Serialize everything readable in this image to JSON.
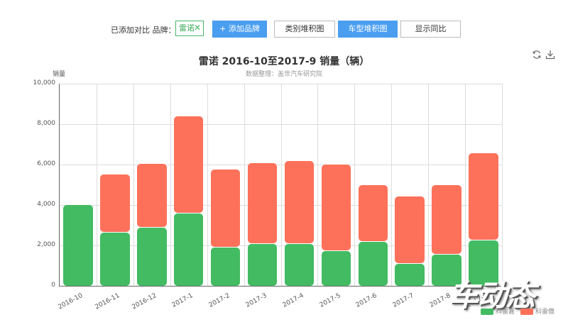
{
  "toolbar": {
    "label": "已添加对比 品牌：",
    "tag": {
      "label": "雷诺",
      "close": "✕"
    },
    "buttons": [
      {
        "label": "+ 添加品牌",
        "style": "blue"
      },
      {
        "label": "类别堆积图",
        "style": "white"
      },
      {
        "label": "车型堆积图",
        "style": "blue"
      },
      {
        "label": "显示同比",
        "style": "white"
      }
    ]
  },
  "tools": {
    "refresh": "refresh-icon",
    "download": "download-icon"
  },
  "colors": {
    "green": "#43bb62",
    "red": "#fd715a",
    "accent": "#4a9ef0"
  },
  "watermark": "车动态",
  "chart_data": {
    "type": "bar",
    "stacked": true,
    "title": "雷诺 2016-10至2017-9 销量（辆）",
    "subtitle": "数据整理：盖世汽车研究院",
    "xlabel": "",
    "ylabel": "销量",
    "ylim": [
      0,
      10000
    ],
    "yticks": [
      "0",
      "2,000",
      "4,000",
      "6,000",
      "8,000",
      "10,000"
    ],
    "grid": true,
    "legend_position": "bottom-right",
    "categories": [
      "2016-10",
      "2016-11",
      "2016-12",
      "2017-1",
      "2017-2",
      "2017-3",
      "2017-4",
      "2017-5",
      "2017-6",
      "2017-7",
      "2017-8",
      "2017-9"
    ],
    "series": [
      {
        "name": "科雷嘉",
        "color": "#43bb62",
        "values": [
          3990,
          2620,
          2890,
          3580,
          1905,
          2060,
          2060,
          1730,
          2175,
          1100,
          1555,
          2245
        ]
      },
      {
        "name": "科雷傲",
        "color": "#fd715a",
        "values": [
          0,
          2890,
          3145,
          4810,
          3860,
          4000,
          4115,
          4280,
          2820,
          3320,
          3425,
          4315
        ]
      }
    ]
  }
}
